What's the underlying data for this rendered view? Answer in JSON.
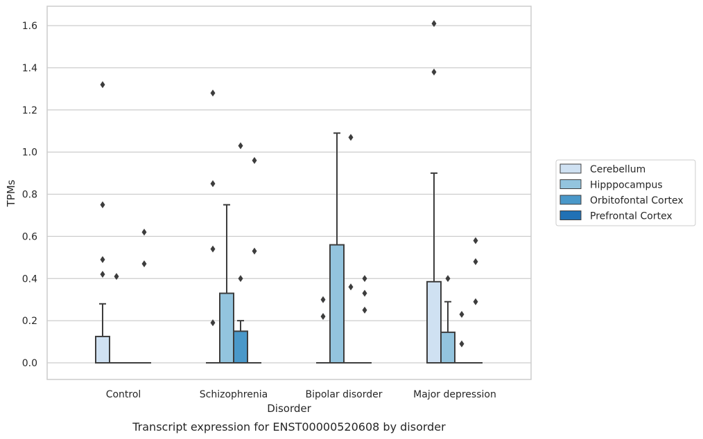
{
  "caption": "Transcript expression for ENST00000520608 by disorder",
  "chart_data": {
    "type": "box",
    "title": "",
    "xlabel": "Disorder",
    "ylabel": "TPMs",
    "ylim": [
      -0.08,
      1.69
    ],
    "yticks": [
      0.0,
      0.2,
      0.4,
      0.6,
      0.8,
      1.0,
      1.2,
      1.4,
      1.6
    ],
    "ytick_labels": [
      "0.0",
      "0.2",
      "0.4",
      "0.6",
      "0.8",
      "1.0",
      "1.2",
      "1.4",
      "1.6"
    ],
    "grid": "horizontal",
    "legend_position": "right",
    "categories": [
      "Control",
      "Schizophrenia",
      "Bipolar disorder",
      "Major depression"
    ],
    "series": [
      {
        "name": "Cerebellum",
        "color": "#cfe1f2",
        "boxes": [
          {
            "q1": 0.0,
            "median": 0.0,
            "q3": 0.125,
            "whisker_low": 0.0,
            "whisker_high": 0.28,
            "outliers": [
              0.42,
              0.49,
              0.75,
              1.32
            ]
          },
          {
            "q1": 0.0,
            "median": 0.0,
            "q3": 0.0,
            "whisker_low": 0.0,
            "whisker_high": 0.0,
            "outliers": [
              0.19,
              0.54,
              0.85,
              1.28
            ]
          },
          {
            "q1": 0.0,
            "median": 0.0,
            "q3": 0.0,
            "whisker_low": 0.0,
            "whisker_high": 0.0,
            "outliers": [
              0.22,
              0.3
            ]
          },
          {
            "q1": 0.0,
            "median": 0.0,
            "q3": 0.385,
            "whisker_low": 0.0,
            "whisker_high": 0.9,
            "outliers": [
              1.38,
              1.61
            ]
          }
        ]
      },
      {
        "name": "Hipppocampus",
        "color": "#93c4de",
        "boxes": [
          {
            "q1": 0.0,
            "median": 0.0,
            "q3": 0.0,
            "whisker_low": 0.0,
            "whisker_high": 0.0,
            "outliers": [
              0.41
            ]
          },
          {
            "q1": 0.0,
            "median": 0.0,
            "q3": 0.33,
            "whisker_low": 0.0,
            "whisker_high": 0.75,
            "outliers": []
          },
          {
            "q1": 0.0,
            "median": 0.0,
            "q3": 0.56,
            "whisker_low": 0.0,
            "whisker_high": 1.09,
            "outliers": []
          },
          {
            "q1": 0.0,
            "median": 0.0,
            "q3": 0.145,
            "whisker_low": 0.0,
            "whisker_high": 0.29,
            "outliers": [
              0.4
            ]
          }
        ]
      },
      {
        "name": "Orbitofontal Cortex",
        "color": "#4a98c9",
        "boxes": [
          {
            "q1": 0.0,
            "median": 0.0,
            "q3": 0.0,
            "whisker_low": 0.0,
            "whisker_high": 0.0,
            "outliers": []
          },
          {
            "q1": 0.0,
            "median": 0.0,
            "q3": 0.15,
            "whisker_low": 0.0,
            "whisker_high": 0.2,
            "outliers": [
              0.4,
              1.03
            ]
          },
          {
            "q1": 0.0,
            "median": 0.0,
            "q3": 0.0,
            "whisker_low": 0.0,
            "whisker_high": 0.0,
            "outliers": [
              0.36,
              1.07
            ]
          },
          {
            "q1": 0.0,
            "median": 0.0,
            "q3": 0.0,
            "whisker_low": 0.0,
            "whisker_high": 0.0,
            "outliers": [
              0.09,
              0.23
            ]
          }
        ]
      },
      {
        "name": "Prefrontal Cortex",
        "color": "#2171b5",
        "boxes": [
          {
            "q1": 0.0,
            "median": 0.0,
            "q3": 0.0,
            "whisker_low": 0.0,
            "whisker_high": 0.0,
            "outliers": [
              0.47,
              0.62
            ]
          },
          {
            "q1": 0.0,
            "median": 0.0,
            "q3": 0.0,
            "whisker_low": 0.0,
            "whisker_high": 0.0,
            "outliers": [
              0.53,
              0.96
            ]
          },
          {
            "q1": 0.0,
            "median": 0.0,
            "q3": 0.0,
            "whisker_low": 0.0,
            "whisker_high": 0.0,
            "outliers": [
              0.25,
              0.33,
              0.4
            ]
          },
          {
            "q1": 0.0,
            "median": 0.0,
            "q3": 0.0,
            "whisker_low": 0.0,
            "whisker_high": 0.0,
            "outliers": [
              0.29,
              0.48,
              0.58
            ]
          }
        ]
      }
    ]
  }
}
